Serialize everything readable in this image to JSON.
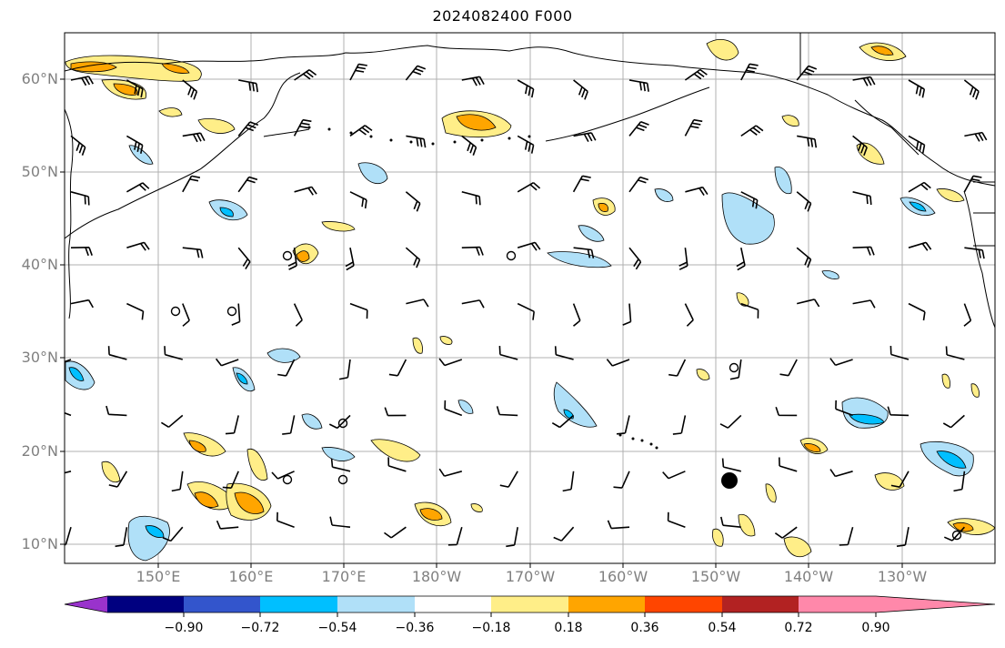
{
  "title": "2024082400 F000",
  "lat_labels": [
    "60°N",
    "50°N",
    "40°N",
    "30°N",
    "20°N",
    "10°N"
  ],
  "lon_labels": [
    "150°E",
    "160°E",
    "170°E",
    "180°W",
    "170°W",
    "160°W",
    "150°W",
    "140°W",
    "130°W"
  ],
  "colorbar": {
    "colors": [
      "#9933cc",
      "#000080",
      "#3355cc",
      "#00bfff",
      "#b0e0f8",
      "#ffffff",
      "#ffee88",
      "#ffa500",
      "#ff4500",
      "#b22222",
      "#ff88aa"
    ],
    "ticks": [
      "−0.90",
      "−0.72",
      "−0.54",
      "−0.36",
      "−0.18",
      "0.18",
      "0.36",
      "0.54",
      "0.72",
      "0.90"
    ]
  }
}
